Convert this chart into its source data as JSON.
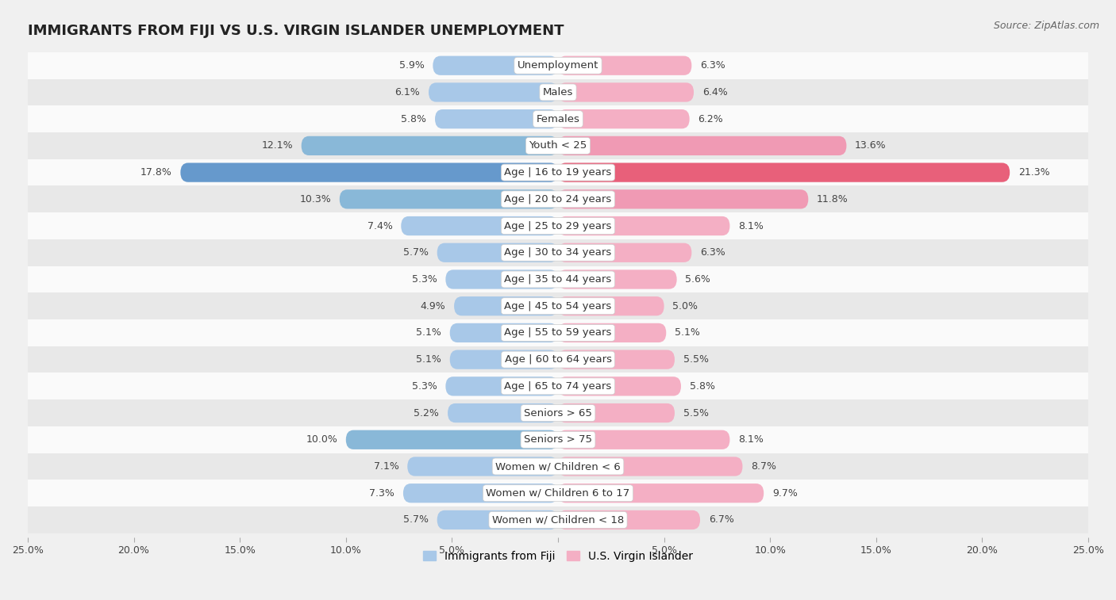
{
  "title": "IMMIGRANTS FROM FIJI VS U.S. VIRGIN ISLANDER UNEMPLOYMENT",
  "source": "Source: ZipAtlas.com",
  "categories": [
    "Unemployment",
    "Males",
    "Females",
    "Youth < 25",
    "Age | 16 to 19 years",
    "Age | 20 to 24 years",
    "Age | 25 to 29 years",
    "Age | 30 to 34 years",
    "Age | 35 to 44 years",
    "Age | 45 to 54 years",
    "Age | 55 to 59 years",
    "Age | 60 to 64 years",
    "Age | 65 to 74 years",
    "Seniors > 65",
    "Seniors > 75",
    "Women w/ Children < 6",
    "Women w/ Children 6 to 17",
    "Women w/ Children < 18"
  ],
  "fiji_values": [
    5.9,
    6.1,
    5.8,
    12.1,
    17.8,
    10.3,
    7.4,
    5.7,
    5.3,
    4.9,
    5.1,
    5.1,
    5.3,
    5.2,
    10.0,
    7.1,
    7.3,
    5.7
  ],
  "usvi_values": [
    6.3,
    6.4,
    6.2,
    13.6,
    21.3,
    11.8,
    8.1,
    6.3,
    5.6,
    5.0,
    5.1,
    5.5,
    5.8,
    5.5,
    8.1,
    8.7,
    9.7,
    6.7
  ],
  "fiji_color": "#a8c8e8",
  "usvi_color": "#f4afc4",
  "fiji_highlight_color": "#6699cc",
  "usvi_highlight_color": "#e8607a",
  "background_color": "#f0f0f0",
  "row_color_light": "#fafafa",
  "row_color_dark": "#e8e8e8",
  "xlim": 25.0,
  "bar_height": 0.72,
  "label_fontsize": 9.5,
  "title_fontsize": 13,
  "source_fontsize": 9,
  "legend_fontsize": 10,
  "value_fontsize": 9
}
